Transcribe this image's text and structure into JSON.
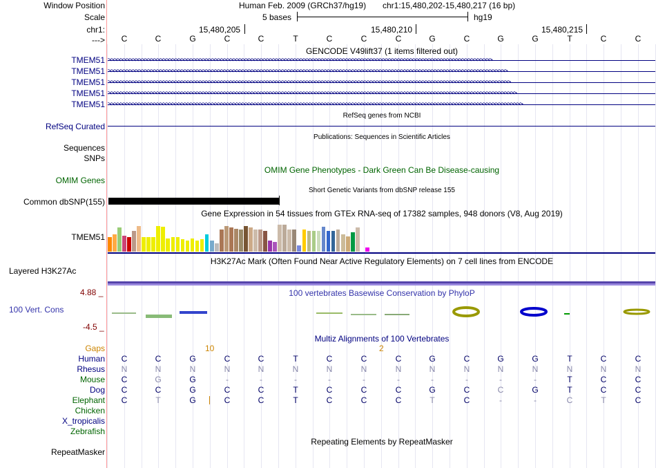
{
  "header": {
    "window_position_label": "Window Position",
    "assembly": "Human Feb. 2009 (GRCh37/hg19)",
    "position": "chr1:15,480,202-15,480,217 (16 bp)",
    "scale_label": "Scale",
    "scale_text": "5 bases",
    "scale_db": "hg19",
    "chrom_label": "chr1:",
    "arrow_label": "--->",
    "ruler_ticks": [
      "15,480,205",
      "15,480,210",
      "15,480,215"
    ]
  },
  "sequence": [
    "C",
    "C",
    "G",
    "C",
    "C",
    "T",
    "C",
    "C",
    "C",
    "G",
    "C",
    "G",
    "G",
    "T",
    "C",
    "C"
  ],
  "gencode": {
    "title": "GENCODE V49lift37 (1 items filtered out)",
    "genes": [
      "TMEM51",
      "TMEM51",
      "TMEM51",
      "TMEM51",
      "TMEM51"
    ]
  },
  "refseq": {
    "title": "RefSeq genes from NCBI",
    "label": "RefSeq Curated"
  },
  "publications": {
    "title": "Publications: Sequences in Scientific Articles",
    "label": "Sequences"
  },
  "snps_label": "SNPs",
  "omim": {
    "title": "OMIM Gene Phenotypes - Dark Green Can Be Disease-causing",
    "label": "OMIM Genes"
  },
  "dbsnp": {
    "title": "Short Genetic Variants from dbSNP release 155",
    "label": "Common dbSNP(155)"
  },
  "gtex": {
    "title": "Gene Expression in 54 tissues from GTEx RNA-seq of 17382 samples, 948 donors (V8, Aug 2019)",
    "label": "TMEM51",
    "bars": [
      {
        "color": "#ff8800",
        "v": 0.45
      },
      {
        "color": "#ffaa44",
        "v": 0.55
      },
      {
        "color": "#99cc77",
        "v": 0.75
      },
      {
        "color": "#cc4477",
        "v": 0.5
      },
      {
        "color": "#cc0000",
        "v": 0.45
      },
      {
        "color": "#bb9988",
        "v": 0.65
      },
      {
        "color": "#eebb88",
        "v": 0.8
      },
      {
        "color": "#eeee00",
        "v": 0.45
      },
      {
        "color": "#eeee00",
        "v": 0.45
      },
      {
        "color": "#eeee00",
        "v": 0.45
      },
      {
        "color": "#eeee00",
        "v": 0.8
      },
      {
        "color": "#eeee00",
        "v": 0.78
      },
      {
        "color": "#eeee00",
        "v": 0.42
      },
      {
        "color": "#eeee00",
        "v": 0.45
      },
      {
        "color": "#eeee00",
        "v": 0.45
      },
      {
        "color": "#eeee00",
        "v": 0.4
      },
      {
        "color": "#eeee00",
        "v": 0.35
      },
      {
        "color": "#eeee00",
        "v": 0.42
      },
      {
        "color": "#eeee00",
        "v": 0.35
      },
      {
        "color": "#eeee00",
        "v": 0.4
      },
      {
        "color": "#00ccdd",
        "v": 0.55
      },
      {
        "color": "#77aacc",
        "v": 0.35
      },
      {
        "color": "#bbbbbb",
        "v": 0.25
      },
      {
        "color": "#aa7755",
        "v": 0.7
      },
      {
        "color": "#bb9977",
        "v": 0.8
      },
      {
        "color": "#aa7755",
        "v": 0.75
      },
      {
        "color": "#aa8866",
        "v": 0.72
      },
      {
        "color": "#998866",
        "v": 0.7
      },
      {
        "color": "#775533",
        "v": 0.8
      },
      {
        "color": "#ccaa88",
        "v": 0.75
      },
      {
        "color": "#ccbbaa",
        "v": 0.7
      },
      {
        "color": "#bb9988",
        "v": 0.7
      },
      {
        "color": "#885544",
        "v": 0.65
      },
      {
        "color": "#9933aa",
        "v": 0.35
      },
      {
        "color": "#aa55bb",
        "v": 0.3
      },
      {
        "color": "#ccbbaa",
        "v": 0.85
      },
      {
        "color": "#bbaa99",
        "v": 0.85
      },
      {
        "color": "#ccbbaa",
        "v": 0.7
      },
      {
        "color": "#998877",
        "v": 0.7
      },
      {
        "color": "#7788dd",
        "v": 0.2
      },
      {
        "color": "#ffcc00",
        "v": 0.7
      },
      {
        "color": "#bbbb88",
        "v": 0.65
      },
      {
        "color": "#aacc88",
        "v": 0.65
      },
      {
        "color": "#ccddbb",
        "v": 0.65
      },
      {
        "color": "#6688cc",
        "v": 0.78
      },
      {
        "color": "#3366cc",
        "v": 0.65
      },
      {
        "color": "#336699",
        "v": 0.65
      },
      {
        "color": "#bbaa99",
        "v": 0.7
      },
      {
        "color": "#ccbb99",
        "v": 0.55
      },
      {
        "color": "#ccaa77",
        "v": 0.48
      },
      {
        "color": "#009944",
        "v": 0.6
      },
      {
        "color": "#ccbbaa",
        "v": 0.75
      },
      {
        "color": "#ffffff",
        "v": 0.0
      },
      {
        "color": "#ee00ee",
        "v": 0.12
      }
    ]
  },
  "h3k27ac": {
    "title": "H3K27Ac Mark (Often Found Near Active Regulatory Elements) on 7 cell lines from ENCODE",
    "label": "Layered H3K27Ac"
  },
  "phylop": {
    "title": "100 vertebrates Basewise Conservation by PhyloP",
    "label": "100 Vert. Cons",
    "max": "4.88 _",
    "min": "-4.5 _",
    "colors": {
      "positive": "#000099",
      "olive": "#999900",
      "green": "#009900"
    }
  },
  "multiz": {
    "title": "Multiz Alignments of 100 Vertebrates",
    "gaps_label": "Gaps",
    "gap_counts": [
      {
        "col": 2.5,
        "text": "10"
      },
      {
        "col": 7.5,
        "text": "2"
      }
    ],
    "species": [
      {
        "name": "Human",
        "color": "#000080",
        "bases": [
          "C",
          "C",
          "G",
          "C",
          "C",
          "T",
          "C",
          "C",
          "C",
          "G",
          "C",
          "G",
          "G",
          "T",
          "C",
          "C"
        ]
      },
      {
        "name": "Rhesus",
        "color": "#000080",
        "bases": [
          "N",
          "N",
          "N",
          "N",
          "N",
          "N",
          "N",
          "N",
          "N",
          "N",
          "N",
          "N",
          "N",
          "N",
          "N",
          "N"
        ]
      },
      {
        "name": "Mouse",
        "color": "#006400",
        "bases": [
          "C",
          "G",
          "G",
          "-",
          "-",
          "-",
          "-",
          "-",
          "-",
          "-",
          "-",
          "-",
          "-",
          "T",
          "C",
          "C"
        ]
      },
      {
        "name": "Dog",
        "color": "#000080",
        "bases": [
          "C",
          "C",
          "G",
          "C",
          "C",
          "T",
          "C",
          "C",
          "C",
          "G",
          "C",
          "C",
          "G",
          "T",
          "C",
          "C"
        ]
      },
      {
        "name": "Elephant",
        "color": "#006400",
        "bases": [
          "C",
          "T",
          "G",
          "C",
          "C",
          "T",
          "C",
          "C",
          "C",
          "T",
          "C",
          "-",
          "-",
          "C",
          "T",
          "C"
        ]
      },
      {
        "name": "Chicken",
        "color": "#006400",
        "bases": []
      },
      {
        "name": "X_tropicalis",
        "color": "#000080",
        "bases": []
      },
      {
        "name": "Zebrafish",
        "color": "#006400",
        "bases": []
      }
    ]
  },
  "repeatmasker": {
    "title": "Repeating Elements by RepeatMasker",
    "label": "RepeatMasker"
  }
}
